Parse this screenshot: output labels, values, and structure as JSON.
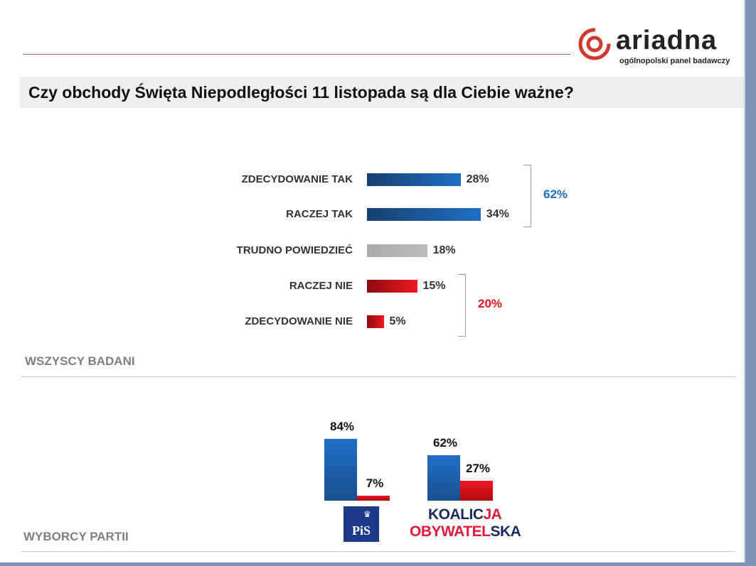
{
  "logo": {
    "name": "ariadna",
    "tagline": "ogólnopolski panel badawczy"
  },
  "title": "Czy obchody Święta Niepodległości 11 listopada są dla Ciebie ważne?",
  "colors": {
    "blue": "#1f6fc5",
    "red": "#e8101a",
    "gray": "#b0b0b0",
    "title_band": "#efefef"
  },
  "chart_data": [
    {
      "type": "bar",
      "orientation": "horizontal",
      "section_label": "WSZYSCY BADANI",
      "categories": [
        "ZDECYDOWANIE TAK",
        "RACZEJ TAK",
        "TRUDNO POWIEDZIEĆ",
        "RACZEJ NIE",
        "ZDECYDOWANIE NIE"
      ],
      "values": [
        28,
        34,
        18,
        15,
        5
      ],
      "labels": [
        "28%",
        "34%",
        "18%",
        "15%",
        "5%"
      ],
      "groups": [
        {
          "label": "62%",
          "members": [
            0,
            1
          ],
          "color": "#1f6fc5"
        },
        {
          "label": "20%",
          "members": [
            3,
            4
          ],
          "color": "#e8101a"
        }
      ]
    },
    {
      "type": "bar",
      "section_label": "WYBORCY PARTII",
      "categories": [
        "PiS",
        "KOALICJA OBYWATELSKA"
      ],
      "series": [
        {
          "values": [
            84,
            62
          ],
          "labels": [
            "84%",
            "62%"
          ],
          "color": "#1f6fc5"
        },
        {
          "values": [
            7,
            27
          ],
          "labels": [
            "7%",
            "27%"
          ],
          "color": "#e8101a"
        }
      ],
      "party_logos": {
        "pis": "PiS",
        "ko_line1a": "KOALIC",
        "ko_line1b": "JA",
        "ko_line2a": "OBYWATEL",
        "ko_line2b": "SKA"
      }
    }
  ]
}
